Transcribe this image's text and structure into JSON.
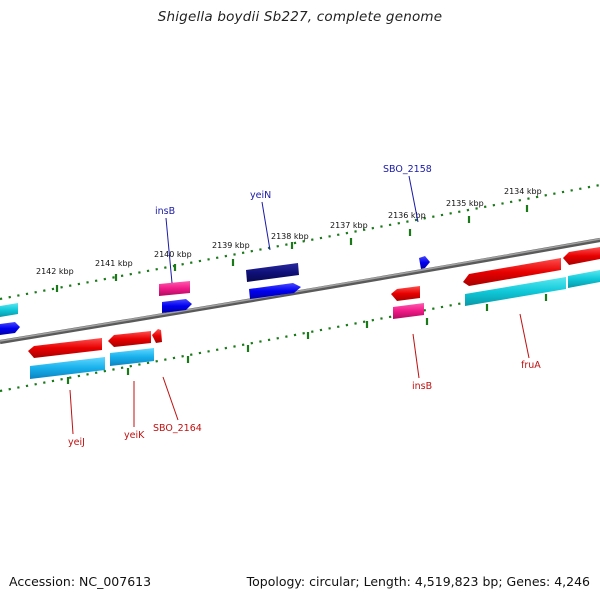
{
  "title": "Shigella boydii Sb227, complete genome",
  "footer": {
    "accession": "Accession: NC_007613",
    "stats": "Topology: circular; Length: 4,519,823 bp; Genes: 4,246"
  },
  "scale_labels": [
    "2142 kbp",
    "2141 kbp",
    "2140 kbp",
    "2139 kbp",
    "2138 kbp",
    "2137 kbp",
    "2136 kbp",
    "2135 kbp",
    "2134 kbp"
  ],
  "gene_labels": {
    "insB_top": "insB",
    "yeiN": "yeiN",
    "SBO_2158": "SBO_2158",
    "yeiJ": "yeiJ",
    "yeiK": "yeiK",
    "SBO_2164": "SBO_2164",
    "insB_bottom": "insB",
    "fruA": "fruA"
  },
  "colors": {
    "forward_cds": "#1010e0",
    "forward_cds_dark": "#101078",
    "reverse_cds": "#e01010",
    "pseudo": "#e01878",
    "rna_forward": "#00bcd0",
    "rna_reverse": "#10b8e8",
    "tick": "#1a7a1a",
    "backbone": "#808080"
  }
}
